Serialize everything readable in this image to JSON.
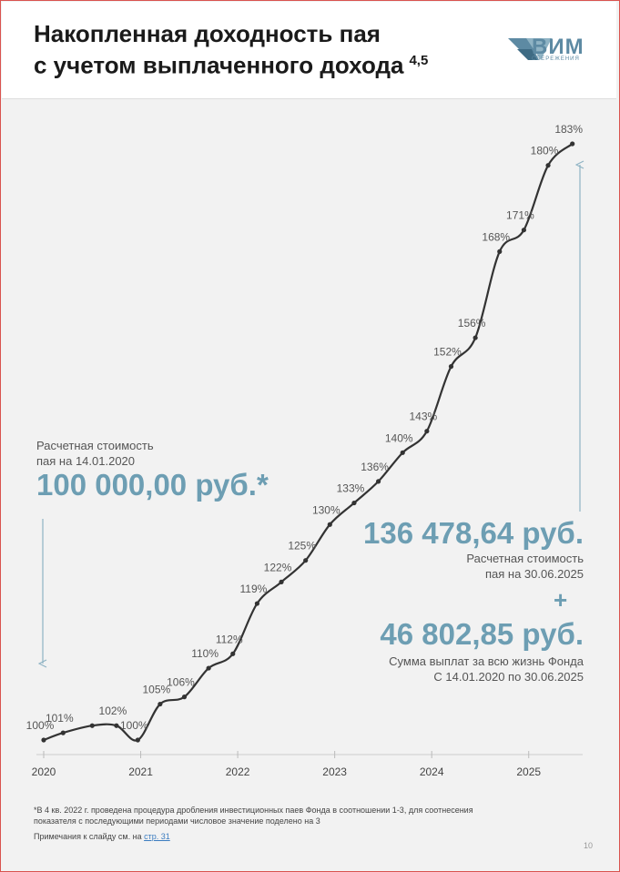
{
  "header": {
    "title_line1": "Накопленная доходность пая",
    "title_line2": "с учетом выплаченного дохода",
    "title_sup": "4,5",
    "logo_text": "ВИМ",
    "logo_sub": "СБЕРЕЖЕНИЯ"
  },
  "left_panel": {
    "label_line1": "Расчетная стоимость",
    "label_line2": "пая на 14.01.2020",
    "value": "100 000,00 руб.*"
  },
  "right_panel": {
    "value1": "136 478,64 руб.",
    "label1_line1": "Расчетная стоимость",
    "label1_line2": "пая на 30.06.2025",
    "plus": "+",
    "value2": "46 802,85 руб.",
    "label2_line1": "Сумма выплат за всю жизнь Фонда",
    "label2_line2": "С 14.01.2020 по 30.06.2025"
  },
  "footnotes": {
    "note1": "*В 4 кв. 2022 г. проведена процедура дробления инвестиционных паев Фонда в соотношении 1-3, для соотнесения показателя с последующими периодами числовое значение поделено на 3",
    "note2_prefix": "Примечания к слайду см. на ",
    "note2_link": "стр. 31",
    "page_number": "10"
  },
  "colors": {
    "accent": "#6d9eb3",
    "line": "#333333",
    "arrow": "#8fb3c4"
  },
  "chart_data": {
    "type": "line",
    "x_ticks": [
      "2020",
      "2021",
      "2022",
      "2023",
      "2024",
      "2025"
    ],
    "series": [
      {
        "points": [
          {
            "x": 2020.0,
            "y": 100,
            "label": "100%"
          },
          {
            "x": 2020.2,
            "y": 101,
            "label": "101%"
          },
          {
            "x": 2020.5,
            "y": 102,
            "label": ""
          },
          {
            "x": 2020.75,
            "y": 102,
            "label": "102%"
          },
          {
            "x": 2020.97,
            "y": 100,
            "label": "100%"
          },
          {
            "x": 2021.2,
            "y": 105,
            "label": "105%"
          },
          {
            "x": 2021.45,
            "y": 106,
            "label": "106%"
          },
          {
            "x": 2021.7,
            "y": 110,
            "label": "110%"
          },
          {
            "x": 2021.95,
            "y": 112,
            "label": "112%"
          },
          {
            "x": 2022.2,
            "y": 119,
            "label": "119%"
          },
          {
            "x": 2022.45,
            "y": 122,
            "label": "122%"
          },
          {
            "x": 2022.7,
            "y": 125,
            "label": "125%"
          },
          {
            "x": 2022.95,
            "y": 130,
            "label": "130%"
          },
          {
            "x": 2023.2,
            "y": 133,
            "label": "133%"
          },
          {
            "x": 2023.45,
            "y": 136,
            "label": "136%"
          },
          {
            "x": 2023.7,
            "y": 140,
            "label": "140%"
          },
          {
            "x": 2023.95,
            "y": 143,
            "label": "143%"
          },
          {
            "x": 2024.2,
            "y": 152,
            "label": "152%"
          },
          {
            "x": 2024.45,
            "y": 156,
            "label": "156%"
          },
          {
            "x": 2024.7,
            "y": 168,
            "label": "168%"
          },
          {
            "x": 2024.95,
            "y": 171,
            "label": "171%"
          },
          {
            "x": 2025.2,
            "y": 180,
            "label": "180%"
          },
          {
            "x": 2025.45,
            "y": 183,
            "label": "183%"
          }
        ]
      }
    ],
    "xlim": [
      2020,
      2025.5
    ],
    "ylim": [
      100,
      183
    ],
    "grid": false
  }
}
